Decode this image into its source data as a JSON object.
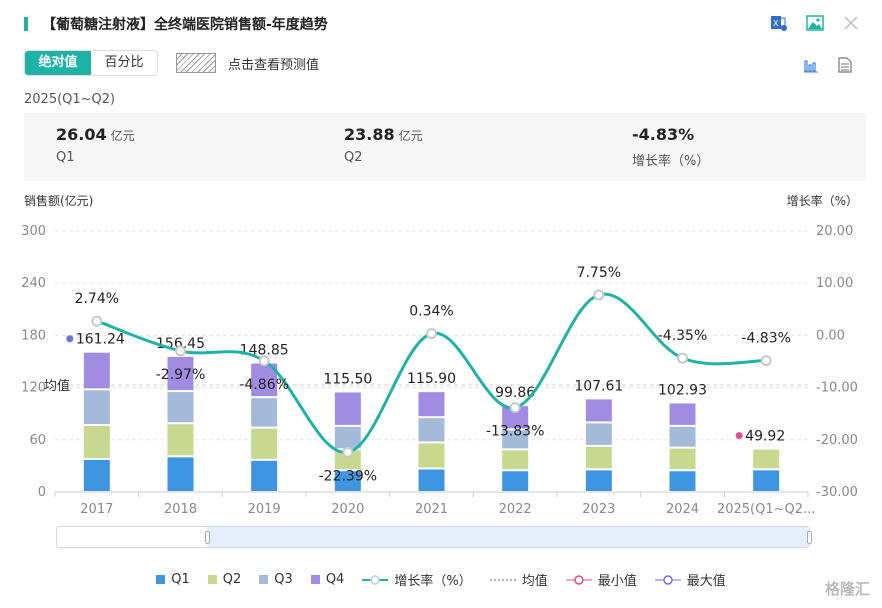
{
  "header": {
    "title": "【葡萄糖注射液】全终端医院销售额-年度趋势",
    "icons": [
      "excel-export-icon",
      "image-export-icon",
      "close-icon"
    ]
  },
  "toggle": {
    "absolute_label": "绝对值",
    "percent_label": "百分比",
    "active": "absolute"
  },
  "forecast": {
    "label": "点击查看预测值"
  },
  "view_icons": [
    "bar-chart-icon",
    "document-icon"
  ],
  "period": "2025(Q1~Q2)",
  "summary": [
    {
      "value": "26.04",
      "unit": "亿元",
      "label": "Q1"
    },
    {
      "value": "23.88",
      "unit": "亿元",
      "label": "Q2"
    },
    {
      "value": "-4.83%",
      "unit": "",
      "label": "增长率（%）"
    }
  ],
  "colors": {
    "accent": "#1fb2a6",
    "q1": "#3f96e0",
    "q2": "#c8d88f",
    "q3": "#a3bbd8",
    "q4": "#a08de3",
    "min": "#e64b8a",
    "max": "#6c72d8"
  },
  "chart_data": {
    "type": "bar",
    "stacked": true,
    "title": "【葡萄糖注射液】全终端医院销售额-年度趋势",
    "ylabel": "销售额(亿元)",
    "y2label": "增长率（%）",
    "ylim": [
      0,
      300
    ],
    "yticks": [
      "0",
      "60",
      "120",
      "180",
      "240",
      "300"
    ],
    "y2lim": [
      -30,
      20
    ],
    "y2ticks": [
      "-30.00",
      "-20.00",
      "-10.00",
      "0.00",
      "10.00",
      "20.00"
    ],
    "categories": [
      "2017",
      "2018",
      "2019",
      "2020",
      "2021",
      "2022",
      "2023",
      "2024",
      "2025(Q1~Q2..."
    ],
    "series": [
      {
        "name": "Q1",
        "values": [
          38,
          41,
          37,
          25,
          27,
          25,
          26,
          25,
          26.04
        ]
      },
      {
        "name": "Q2",
        "values": [
          39,
          38,
          37,
          24,
          30,
          24,
          27,
          26,
          23.88
        ]
      },
      {
        "name": "Q3",
        "values": [
          41,
          37,
          35,
          27,
          29,
          23,
          27,
          25,
          0
        ]
      },
      {
        "name": "Q4",
        "values": [
          43.24,
          40.45,
          39.85,
          39.5,
          29.9,
          27.86,
          27.61,
          26.93,
          0
        ]
      }
    ],
    "totals": [
      "161.24",
      "156.45",
      "148.85",
      "115.50",
      "115.90",
      "99.86",
      "107.61",
      "102.93",
      "49.92"
    ],
    "growth": {
      "name": "增长率（%）",
      "values": [
        2.74,
        -2.97,
        -4.86,
        -22.39,
        0.34,
        -13.83,
        7.75,
        -4.35,
        -4.83
      ],
      "labels": [
        "2.74%",
        "-2.97%",
        "-4.86%",
        "-22.39%",
        "0.34%",
        "-13.83%",
        "7.75%",
        "-4.35%",
        "-4.83%"
      ]
    },
    "average": {
      "label": "均值",
      "value": 123
    },
    "max_marker": {
      "category": "2017",
      "value": 161.24
    },
    "min_marker": {
      "category": "2025(Q1~Q2...",
      "value": 49.92
    },
    "grid": true,
    "legend": {
      "position": "bottom",
      "items": [
        "Q1",
        "Q2",
        "Q3",
        "Q4",
        "增长率（%）",
        "均值",
        "最小值",
        "最大值"
      ]
    }
  },
  "watermark": "格隆汇"
}
